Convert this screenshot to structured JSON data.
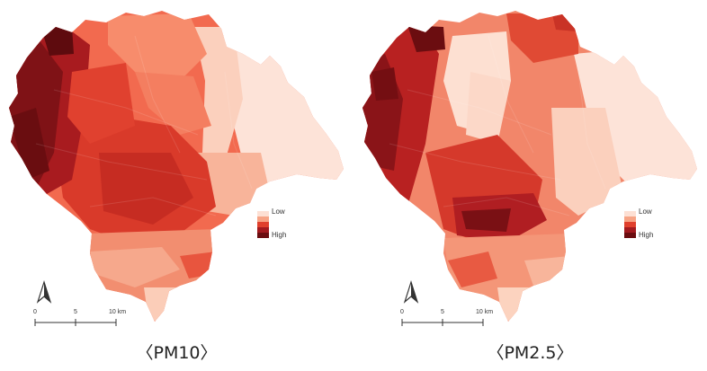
{
  "maps": [
    {
      "id": "pm10",
      "caption": "〈PM10〉",
      "legend": {
        "low_label": "Low",
        "high_label": "High",
        "colors": [
          "#fde0d4",
          "#f7a486",
          "#e0402d",
          "#a31a1f",
          "#6b0d10"
        ]
      },
      "scale_bar": {
        "ticks": [
          "0",
          "5",
          "10 km"
        ]
      },
      "north_arrow_icon": "north-arrow-icon"
    },
    {
      "id": "pm25",
      "caption": "〈PM2.5〉",
      "legend": {
        "low_label": "Low",
        "high_label": "High",
        "colors": [
          "#fde0d4",
          "#f7a486",
          "#e0402d",
          "#a31a1f",
          "#6b0d10"
        ]
      },
      "scale_bar": {
        "ticks": [
          "0",
          "5",
          "10 km"
        ]
      },
      "north_arrow_icon": "north-arrow-icon"
    }
  ]
}
